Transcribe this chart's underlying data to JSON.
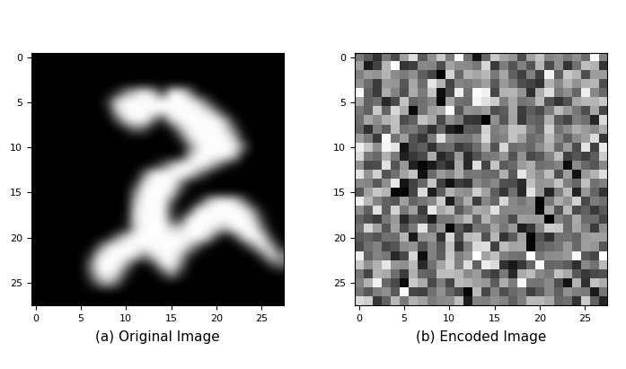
{
  "subtitle_a": "(a) Original Image",
  "subtitle_b": "(b) Encoded Image",
  "figsize": [
    6.97,
    4.11
  ],
  "dpi": 100,
  "mnist_3": [
    [
      0,
      0,
      0,
      0,
      0,
      0,
      0,
      0,
      0,
      0,
      0,
      0,
      0,
      0,
      0,
      0,
      0,
      0,
      0,
      0,
      0,
      0,
      0,
      0,
      0,
      0,
      0,
      0
    ],
    [
      0,
      0,
      0,
      0,
      0,
      0,
      0,
      0,
      0,
      0,
      0,
      0,
      0,
      0,
      0,
      0,
      0,
      0,
      0,
      0,
      0,
      0,
      0,
      0,
      0,
      0,
      0,
      0
    ],
    [
      0,
      0,
      0,
      0,
      0,
      0,
      0,
      0,
      0,
      0,
      0,
      0,
      0,
      0,
      0,
      0,
      0,
      0,
      0,
      0,
      0,
      0,
      0,
      0,
      0,
      0,
      0,
      0
    ],
    [
      0,
      0,
      0,
      0,
      0,
      0,
      0,
      0,
      0,
      0,
      0,
      0,
      0,
      0,
      0,
      0,
      0,
      0,
      0,
      0,
      0,
      0,
      0,
      0,
      0,
      0,
      0,
      0
    ],
    [
      0,
      0,
      0,
      0,
      0,
      0,
      0,
      0,
      0,
      0.18,
      0.58,
      0.82,
      0.99,
      0.78,
      0.22,
      0.99,
      0.99,
      0.58,
      0.04,
      0,
      0,
      0,
      0,
      0,
      0,
      0,
      0,
      0
    ],
    [
      0,
      0,
      0,
      0,
      0,
      0,
      0,
      0,
      0.25,
      0.88,
      0.99,
      0.99,
      0.99,
      0.99,
      0.99,
      0.99,
      0.99,
      0.99,
      0.78,
      0.35,
      0,
      0,
      0,
      0,
      0,
      0,
      0,
      0
    ],
    [
      0,
      0,
      0,
      0,
      0,
      0,
      0,
      0,
      0.09,
      0.82,
      0.99,
      0.99,
      0.99,
      0.99,
      0.99,
      0.99,
      0.99,
      0.99,
      0.99,
      0.88,
      0.45,
      0.04,
      0,
      0,
      0,
      0,
      0,
      0
    ],
    [
      0,
      0,
      0,
      0,
      0,
      0,
      0,
      0,
      0,
      0.35,
      0.88,
      0.99,
      0.99,
      0.55,
      0.18,
      0.88,
      0.99,
      0.99,
      0.99,
      0.99,
      0.99,
      0.64,
      0.08,
      0,
      0,
      0,
      0,
      0
    ],
    [
      0,
      0,
      0,
      0,
      0,
      0,
      0,
      0,
      0,
      0,
      0.18,
      0.45,
      0.35,
      0.04,
      0,
      0.12,
      0.72,
      0.99,
      0.99,
      0.99,
      0.99,
      0.88,
      0.38,
      0,
      0,
      0,
      0,
      0
    ],
    [
      0,
      0,
      0,
      0,
      0,
      0,
      0,
      0,
      0,
      0,
      0,
      0,
      0,
      0,
      0,
      0,
      0.25,
      0.88,
      0.99,
      0.99,
      0.99,
      0.99,
      0.72,
      0.08,
      0,
      0,
      0,
      0
    ],
    [
      0,
      0,
      0,
      0,
      0,
      0,
      0,
      0,
      0,
      0,
      0,
      0,
      0,
      0,
      0,
      0,
      0,
      0.45,
      0.92,
      0.99,
      0.99,
      0.99,
      0.95,
      0.45,
      0,
      0,
      0,
      0
    ],
    [
      0,
      0,
      0,
      0,
      0,
      0,
      0,
      0,
      0,
      0,
      0,
      0,
      0,
      0,
      0,
      0,
      0.04,
      0.72,
      0.99,
      0.99,
      0.99,
      0.99,
      0.72,
      0.04,
      0,
      0,
      0,
      0
    ],
    [
      0,
      0,
      0,
      0,
      0,
      0,
      0,
      0,
      0,
      0,
      0,
      0,
      0,
      0.08,
      0.35,
      0.72,
      0.99,
      0.99,
      0.99,
      0.88,
      0.55,
      0.18,
      0.04,
      0,
      0,
      0,
      0,
      0
    ],
    [
      0,
      0,
      0,
      0,
      0,
      0,
      0,
      0,
      0,
      0,
      0,
      0,
      0.45,
      0.99,
      0.99,
      0.99,
      0.99,
      0.88,
      0.52,
      0.18,
      0,
      0,
      0,
      0,
      0,
      0,
      0,
      0
    ],
    [
      0,
      0,
      0,
      0,
      0,
      0,
      0,
      0,
      0,
      0,
      0,
      0.18,
      0.88,
      0.99,
      0.99,
      0.99,
      0.58,
      0.08,
      0,
      0,
      0,
      0,
      0,
      0,
      0,
      0,
      0,
      0
    ],
    [
      0,
      0,
      0,
      0,
      0,
      0,
      0,
      0,
      0,
      0,
      0,
      0.55,
      0.99,
      0.99,
      0.99,
      0.92,
      0.25,
      0,
      0,
      0,
      0,
      0,
      0,
      0,
      0,
      0,
      0,
      0
    ],
    [
      0,
      0,
      0,
      0,
      0,
      0,
      0,
      0,
      0,
      0,
      0,
      0.75,
      0.99,
      0.99,
      0.99,
      0.45,
      0,
      0,
      0.12,
      0.72,
      0.99,
      0.99,
      0.92,
      0.45,
      0.04,
      0,
      0,
      0
    ],
    [
      0,
      0,
      0,
      0,
      0,
      0,
      0,
      0,
      0,
      0,
      0,
      0.88,
      0.99,
      0.99,
      0.99,
      0.22,
      0,
      0.22,
      0.99,
      0.99,
      0.99,
      0.99,
      0.99,
      0.99,
      0.55,
      0.08,
      0,
      0
    ],
    [
      0,
      0,
      0,
      0,
      0,
      0,
      0,
      0,
      0,
      0,
      0.08,
      0.88,
      0.99,
      0.99,
      0.99,
      0.35,
      0.25,
      0.99,
      0.99,
      0.99,
      0.99,
      0.99,
      0.99,
      0.99,
      0.88,
      0.25,
      0,
      0
    ],
    [
      0,
      0,
      0,
      0,
      0,
      0,
      0,
      0,
      0,
      0,
      0.12,
      0.82,
      0.99,
      0.99,
      0.99,
      0.82,
      0.82,
      0.99,
      0.99,
      0.99,
      0.88,
      0.72,
      0.99,
      0.99,
      0.99,
      0.52,
      0.04,
      0
    ],
    [
      0,
      0,
      0,
      0,
      0,
      0,
      0,
      0,
      0.08,
      0.55,
      0.88,
      0.99,
      0.99,
      0.99,
      0.99,
      0.99,
      0.99,
      0.99,
      0.99,
      0.82,
      0.22,
      0,
      0.22,
      0.88,
      0.99,
      0.92,
      0.25,
      0
    ],
    [
      0,
      0,
      0,
      0,
      0,
      0,
      0,
      0.35,
      0.88,
      0.99,
      0.99,
      0.99,
      0.99,
      0.99,
      0.99,
      0.99,
      0.99,
      0.75,
      0.35,
      0.04,
      0,
      0,
      0,
      0.08,
      0.55,
      0.92,
      0.72,
      0.12
    ],
    [
      0,
      0,
      0,
      0,
      0,
      0,
      0.18,
      0.88,
      0.99,
      0.99,
      0.99,
      0.88,
      0.55,
      0.88,
      0.99,
      0.99,
      0.75,
      0.22,
      0,
      0,
      0,
      0,
      0,
      0,
      0,
      0.35,
      0.88,
      0.55
    ],
    [
      0,
      0,
      0,
      0,
      0,
      0,
      0.45,
      0.99,
      0.99,
      0.99,
      0.65,
      0.12,
      0,
      0.25,
      0.88,
      0.99,
      0.55,
      0.04,
      0,
      0,
      0,
      0,
      0,
      0,
      0,
      0,
      0.25,
      0.45
    ],
    [
      0,
      0,
      0,
      0,
      0,
      0,
      0.35,
      0.88,
      0.99,
      0.82,
      0.22,
      0,
      0,
      0,
      0.22,
      0.65,
      0.18,
      0,
      0,
      0,
      0,
      0,
      0,
      0,
      0,
      0,
      0,
      0
    ],
    [
      0,
      0,
      0,
      0,
      0,
      0,
      0.12,
      0.52,
      0.72,
      0.42,
      0.04,
      0,
      0,
      0,
      0,
      0,
      0,
      0,
      0,
      0,
      0,
      0,
      0,
      0,
      0,
      0,
      0,
      0
    ],
    [
      0,
      0,
      0,
      0,
      0,
      0,
      0,
      0,
      0,
      0,
      0,
      0,
      0,
      0,
      0,
      0,
      0,
      0,
      0,
      0,
      0,
      0,
      0,
      0,
      0,
      0,
      0,
      0
    ],
    [
      0,
      0,
      0,
      0,
      0,
      0,
      0,
      0,
      0,
      0,
      0,
      0,
      0,
      0,
      0,
      0,
      0,
      0,
      0,
      0,
      0,
      0,
      0,
      0,
      0,
      0,
      0,
      0
    ]
  ],
  "encoded_seed": 12345
}
